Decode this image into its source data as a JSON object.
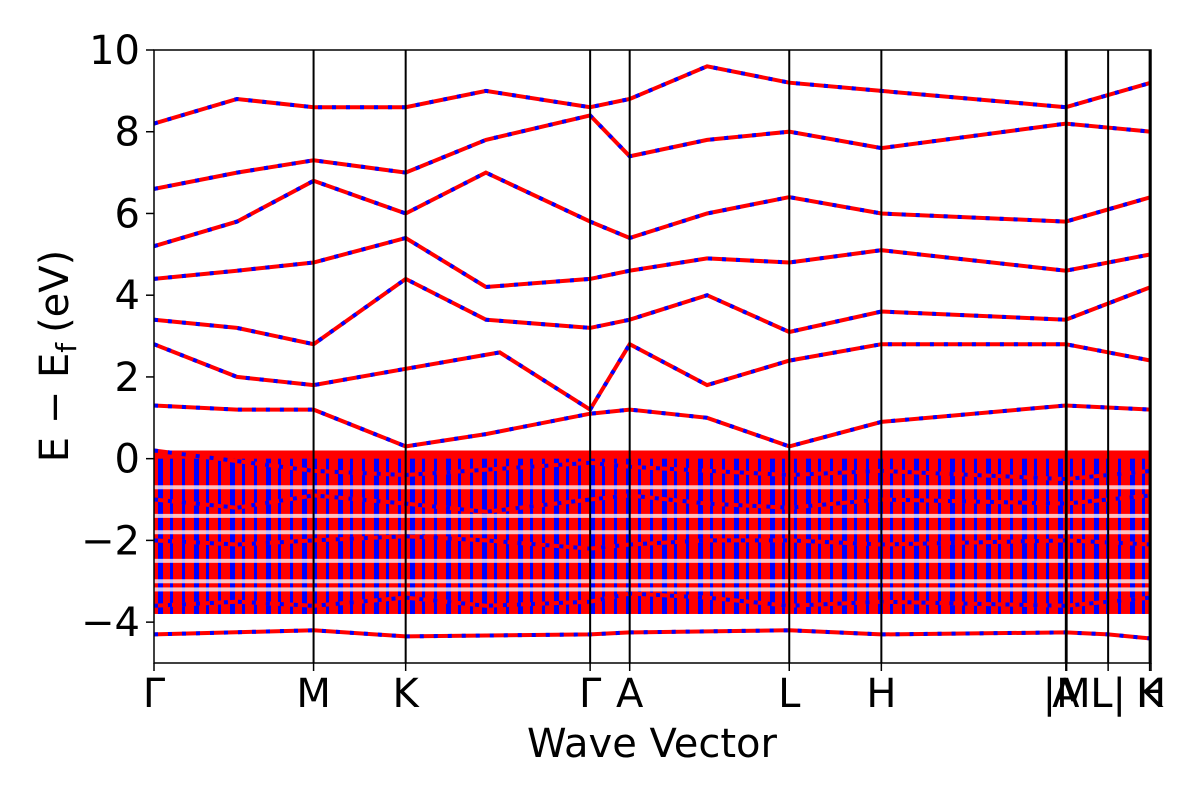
{
  "chart_data": {
    "type": "line",
    "title": "",
    "xlabel": "Wave Vector",
    "ylabel": "E − E_f (eV)",
    "ylabel_parts": {
      "main": "E − E",
      "subscript": "f",
      "unit": "(eV)"
    },
    "ylim": [
      -5,
      10
    ],
    "yticks": [
      "−4",
      "−2",
      "0",
      "2",
      "4",
      "6",
      "8",
      "10"
    ],
    "ytick_values": [
      -4,
      -2,
      0,
      2,
      4,
      6,
      8,
      10
    ],
    "kpath_labels": [
      "Γ",
      "M",
      "K",
      "Γ",
      "A",
      "L",
      "H",
      "A",
      "|M",
      "L|",
      "K",
      "H"
    ],
    "kpath_positions": [
      0.0,
      0.577,
      0.91,
      1.577,
      1.72,
      2.297,
      2.63,
      3.297,
      3.3,
      3.45,
      3.6,
      3.605
    ],
    "grid": false,
    "legend": "none",
    "colors": {
      "spin_up": "#ff0000",
      "spin_down": "#0000ff",
      "axes": "#000000"
    },
    "series": [
      {
        "x": [
          0,
          0.577,
          0.91,
          1.577,
          1.72,
          2.297,
          2.63,
          3.297,
          3.45,
          3.605
        ],
        "y": [
          -4.3,
          -4.2,
          -4.35,
          -4.3,
          -4.25,
          -4.2,
          -4.3,
          -4.25,
          -4.3,
          -4.4
        ]
      },
      {
        "x": [
          0,
          0.577,
          0.91,
          1.577,
          1.72,
          2.297,
          2.63,
          3.297,
          3.45,
          3.605
        ],
        "y": [
          0.2,
          -0.3,
          -0.4,
          -0.1,
          -0.2,
          -0.4,
          -0.3,
          -0.5,
          -0.4,
          -0.3
        ]
      },
      {
        "x": [
          0,
          0.3,
          0.577,
          0.91,
          1.2,
          1.577,
          1.72,
          2.0,
          2.297,
          2.63,
          3.297,
          3.605
        ],
        "y": [
          1.3,
          1.2,
          1.2,
          0.3,
          0.6,
          1.1,
          1.2,
          1.0,
          0.3,
          0.9,
          1.3,
          1.2
        ]
      },
      {
        "x": [
          0,
          0.3,
          0.577,
          0.91,
          1.25,
          1.577,
          1.72,
          2.0,
          2.297,
          2.63,
          3.297,
          3.605
        ],
        "y": [
          2.8,
          2.0,
          1.8,
          2.2,
          2.6,
          1.2,
          2.8,
          1.8,
          2.4,
          2.8,
          2.8,
          2.4
        ]
      },
      {
        "x": [
          0,
          0.3,
          0.577,
          0.91,
          1.2,
          1.577,
          1.72,
          2.0,
          2.297,
          2.63,
          3.297,
          3.605
        ],
        "y": [
          3.4,
          3.2,
          2.8,
          4.4,
          3.4,
          3.2,
          3.4,
          4.0,
          3.1,
          3.6,
          3.4,
          4.2
        ]
      },
      {
        "x": [
          0,
          0.3,
          0.577,
          0.91,
          1.2,
          1.577,
          1.72,
          2.0,
          2.297,
          2.63,
          3.297,
          3.605
        ],
        "y": [
          4.4,
          4.6,
          4.8,
          5.4,
          4.2,
          4.4,
          4.6,
          4.9,
          4.8,
          5.1,
          4.6,
          5.0
        ]
      },
      {
        "x": [
          0,
          0.3,
          0.577,
          0.91,
          1.2,
          1.577,
          1.72,
          2.0,
          2.297,
          2.63,
          3.297,
          3.605
        ],
        "y": [
          5.2,
          5.8,
          6.8,
          6.0,
          7.0,
          5.8,
          5.4,
          6.0,
          6.4,
          6.0,
          5.8,
          6.4
        ]
      },
      {
        "x": [
          0,
          0.3,
          0.577,
          0.91,
          1.2,
          1.577,
          1.72,
          2.0,
          2.297,
          2.63,
          3.297,
          3.605
        ],
        "y": [
          6.6,
          7.0,
          7.3,
          7.0,
          7.8,
          8.4,
          7.4,
          7.8,
          8.0,
          7.6,
          8.2,
          8.0
        ]
      },
      {
        "x": [
          0,
          0.3,
          0.577,
          0.91,
          1.2,
          1.577,
          1.72,
          2.0,
          2.297,
          2.63,
          3.297,
          3.605
        ],
        "y": [
          8.2,
          8.8,
          8.6,
          8.6,
          9.0,
          8.6,
          8.8,
          9.6,
          9.2,
          9.0,
          8.6,
          9.2
        ]
      },
      {
        "x": [
          0,
          0.3,
          0.577,
          0.91,
          1.2,
          1.577,
          1.72,
          2.0,
          2.297,
          2.63,
          3.297,
          3.605
        ],
        "y": [
          -2.0,
          -2.1,
          -2.0,
          -1.9,
          -2.0,
          -2.2,
          -2.1,
          -2.0,
          -2.0,
          -2.1,
          -2.0,
          -2.1
        ]
      },
      {
        "x": [
          0,
          0.3,
          0.577,
          0.91,
          1.2,
          1.577,
          1.72,
          2.0,
          2.297,
          2.63,
          3.297,
          3.605
        ],
        "y": [
          -3.6,
          -3.5,
          -3.6,
          -3.4,
          -3.6,
          -3.5,
          -3.3,
          -3.4,
          -3.6,
          -3.5,
          -3.6,
          -3.4
        ]
      },
      {
        "x": [
          0,
          0.3,
          0.577,
          0.91,
          1.2,
          1.577,
          1.72,
          2.0,
          2.297,
          2.63,
          3.297,
          3.605
        ],
        "y": [
          -1.0,
          -1.2,
          -0.9,
          -1.1,
          -1.3,
          -1.0,
          -0.9,
          -1.1,
          -1.2,
          -1.0,
          -1.1,
          -0.9
        ]
      }
    ]
  }
}
